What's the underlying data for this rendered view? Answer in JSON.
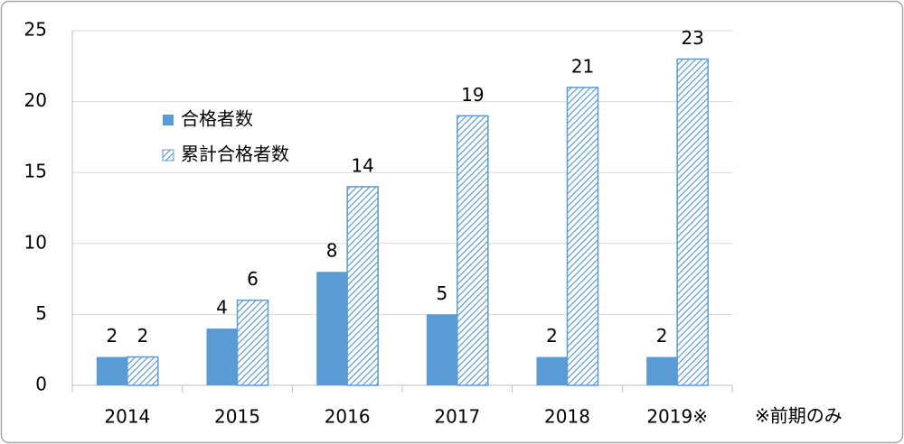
{
  "chart_data": {
    "type": "bar",
    "categories": [
      "2014",
      "2015",
      "2016",
      "2017",
      "2018",
      "2019※"
    ],
    "series": [
      {
        "name": "合格者数",
        "color": "#5b9bd5",
        "hatch": false,
        "values": [
          2,
          4,
          8,
          5,
          2,
          2
        ]
      },
      {
        "name": "累計合格者数",
        "color": "#5b9bd5",
        "hatch": true,
        "values": [
          2,
          6,
          14,
          19,
          21,
          23
        ]
      }
    ],
    "ylim": [
      0,
      25
    ],
    "yticks": [
      0,
      5,
      10,
      15,
      20,
      25
    ],
    "grid": true,
    "annotation": "※前期のみ"
  }
}
